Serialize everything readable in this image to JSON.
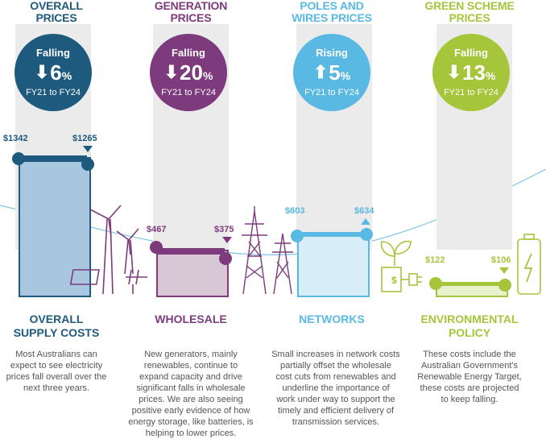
{
  "colors": {
    "overall": "#1e5a7e",
    "wholesale": "#7d3a7c",
    "networks": "#5ab9e3",
    "environmental": "#a5c63b",
    "stripe": "#ebebeb",
    "text": "#555555"
  },
  "sections": [
    {
      "key": "overall",
      "header": [
        "OVERALL",
        "PRICES"
      ],
      "direction": "Falling",
      "arrow_icon": "down-arrow-dollar-icon",
      "percent": "6",
      "percent_sign": "%",
      "period": "FY21 to FY24",
      "price_start": "$1342",
      "price_end": "$1265",
      "title": [
        "OVERALL",
        "SUPPLY COSTS"
      ],
      "description": [
        "Most Australians can",
        "expect to see electricity",
        "prices fall overall over the",
        "next three years."
      ]
    },
    {
      "key": "wholesale",
      "header": [
        "GENERATION",
        "PRICES"
      ],
      "direction": "Falling",
      "arrow_icon": "down-arrow-dollar-icon",
      "percent": "20",
      "percent_sign": "%",
      "period": "FY21 to FY24",
      "price_start": "$467",
      "price_end": "$375",
      "title": [
        "WHOLESALE"
      ],
      "description": [
        "New generators, mainly",
        "renewables, continue to",
        "expand capacity and drive",
        "significant falls in wholesale",
        "prices. We are also seeing",
        "positive early evidence of how",
        "energy storage, like batteries, is",
        "helping to lower prices."
      ]
    },
    {
      "key": "networks",
      "header": [
        "POLES AND",
        "WIRES PRICES"
      ],
      "direction": "Rising",
      "arrow_icon": "up-arrow-dollar-icon",
      "percent": "5",
      "percent_sign": "%",
      "period": "FY21 to FY24",
      "price_start": "$603",
      "price_end": "$634",
      "title": [
        "NETWORKS"
      ],
      "description": [
        "Small increases in network costs",
        "partially offset the wholesale",
        "cost cuts from renewables and",
        "underline the importance of",
        "work under way to support the",
        "timely and efficient delivery of",
        "transmission services."
      ]
    },
    {
      "key": "environmental",
      "header": [
        "GREEN SCHEME",
        "PRICES"
      ],
      "direction": "Falling",
      "arrow_icon": "down-arrow-dollar-icon",
      "percent": "13",
      "percent_sign": "%",
      "period": "FY21 to FY24",
      "price_start": "$122",
      "price_end": "$106",
      "title": [
        "ENVIRONMENTAL",
        "POLICY"
      ],
      "description": [
        "These costs include the",
        "Australian Government's",
        "Renewable Energy Target,",
        "these costs are projected",
        "to keep falling."
      ]
    }
  ]
}
